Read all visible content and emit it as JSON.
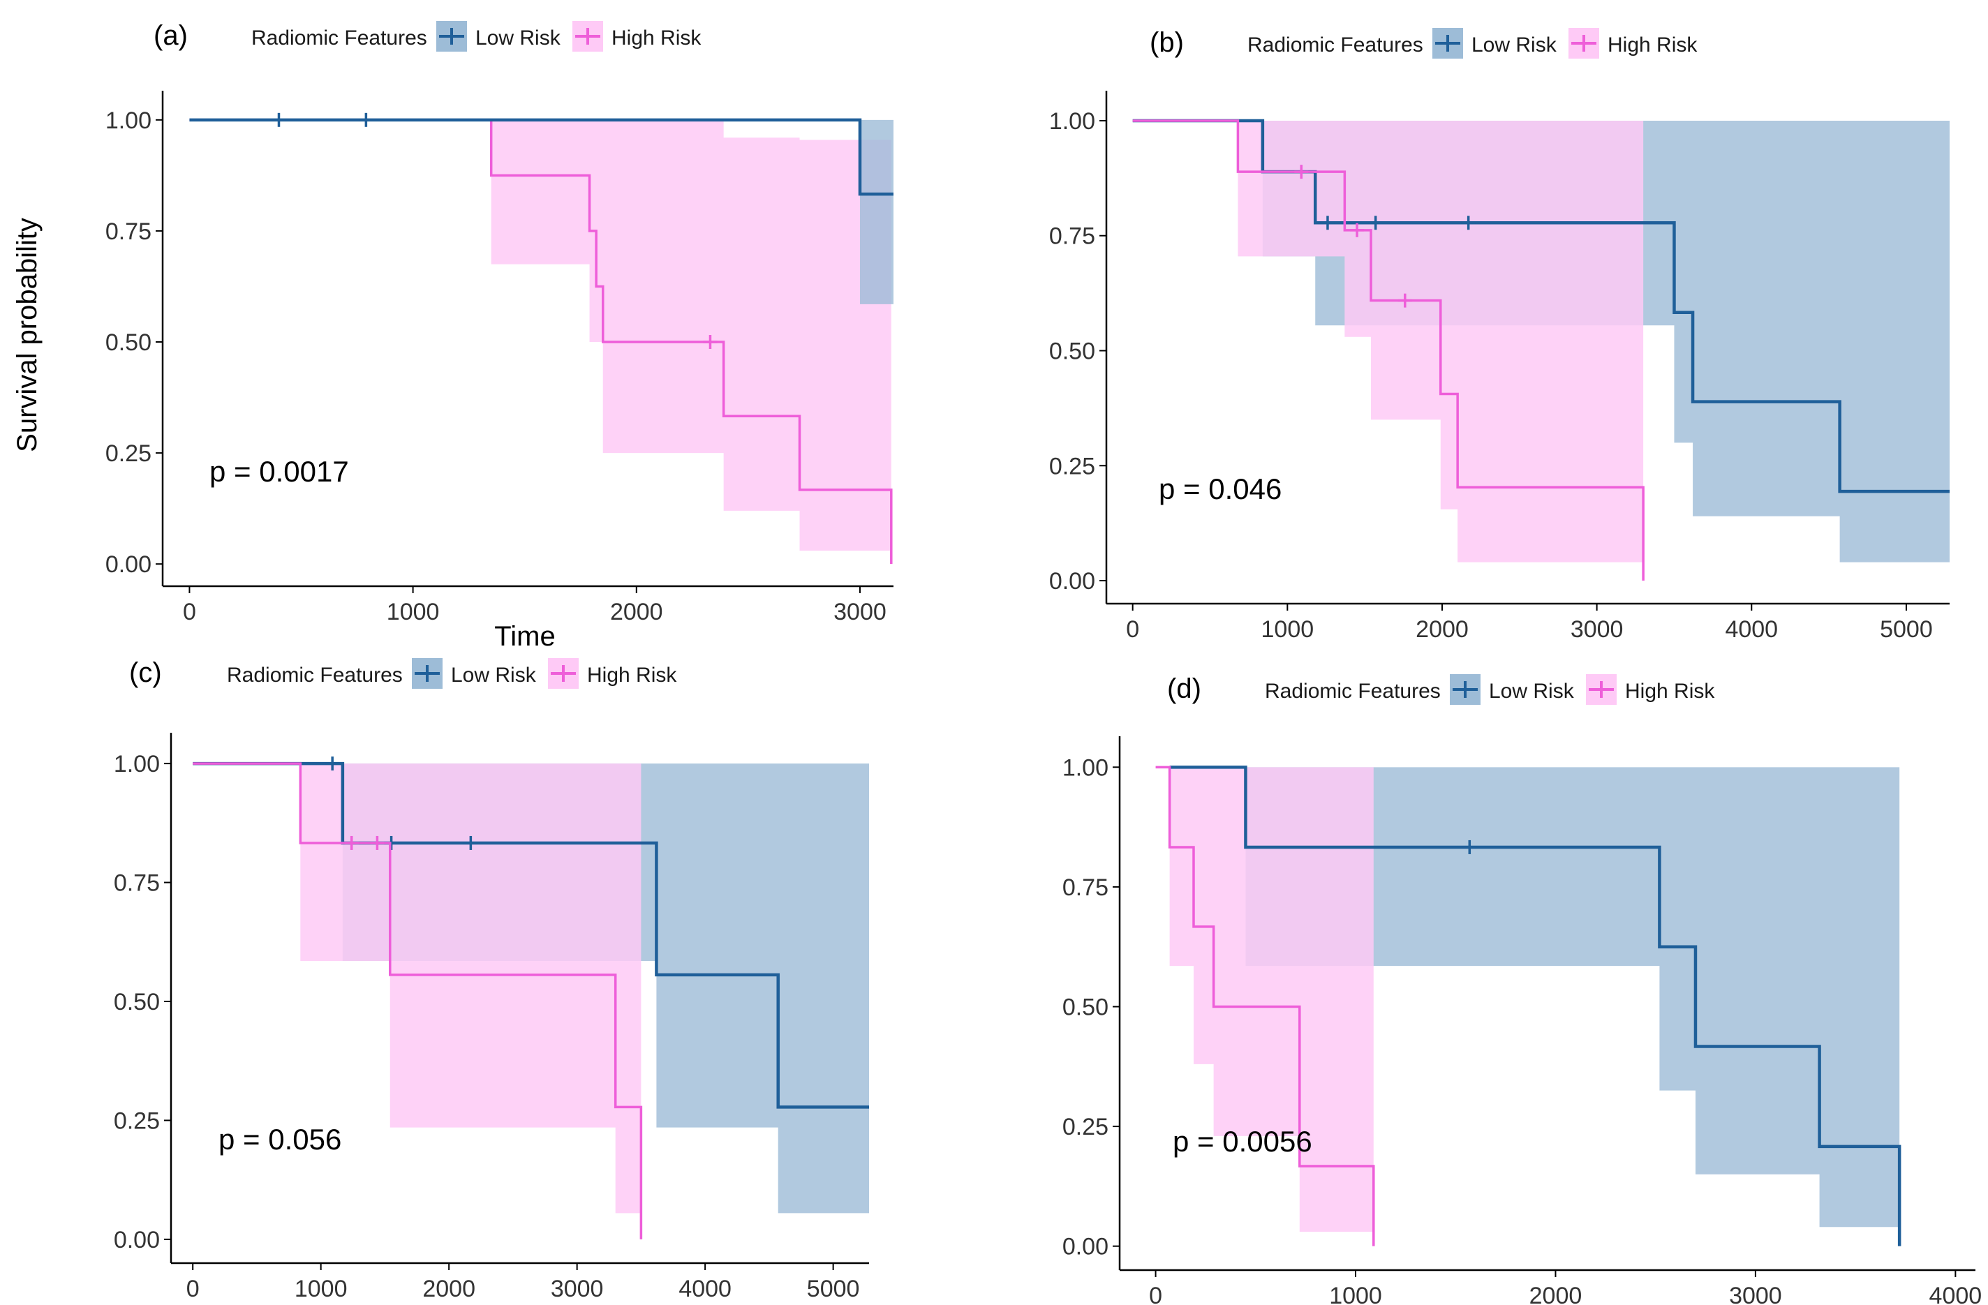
{
  "figure": {
    "y_axis_title": "Survival probability",
    "x_axis_title": "Time",
    "legend": {
      "title": "Radiomic Features",
      "low_label": "Low Risk",
      "high_label": "High Risk"
    },
    "colors": {
      "low_line": "#1f5f99",
      "low_fill": "#9dbcd7",
      "high_line": "#ee5ed9",
      "high_fill": "#fecaf6",
      "overlap_fill": "#cfb0df"
    }
  },
  "chart_data": [
    {
      "type": "line",
      "panel": "(a)",
      "title": "",
      "p_value": "p = 0.0017",
      "xlabel": "Time",
      "ylabel": "Survival probability",
      "xlim": [
        -120,
        3150
      ],
      "ylim": [
        -0.05,
        1.05
      ],
      "x_ticks": [
        0,
        1000,
        2000,
        3000
      ],
      "y_ticks": [
        0.0,
        0.25,
        0.5,
        0.75,
        1.0
      ],
      "series": [
        {
          "name": "High Risk",
          "step": [
            [
              0,
              1.0
            ],
            [
              1350,
              1.0
            ],
            [
              1350,
              0.875
            ],
            [
              1790,
              0.875
            ],
            [
              1790,
              0.75
            ],
            [
              1820,
              0.75
            ],
            [
              1820,
              0.625
            ],
            [
              1850,
              0.625
            ],
            [
              1850,
              0.5
            ],
            [
              2390,
              0.5
            ],
            [
              2390,
              0.333
            ],
            [
              2730,
              0.333
            ],
            [
              2730,
              0.167
            ],
            [
              3140,
              0.167
            ],
            [
              3140,
              0.0
            ]
          ],
          "censored": [
            [
              2330,
              0.5
            ]
          ],
          "ci_band": [
            [
              1350,
              0.675,
              1.0
            ],
            [
              1790,
              0.5,
              1.0
            ],
            [
              1850,
              0.25,
              1.0
            ],
            [
              2390,
              0.12,
              0.96
            ],
            [
              2730,
              0.03,
              0.955
            ],
            [
              3140,
              0.0,
              0.955
            ]
          ]
        },
        {
          "name": "Low Risk",
          "step": [
            [
              0,
              1.0
            ],
            [
              3000,
              1.0
            ],
            [
              3000,
              0.833
            ],
            [
              3150,
              0.833
            ]
          ],
          "censored": [
            [
              400,
              1.0
            ],
            [
              790,
              1.0
            ]
          ],
          "ci_band": [
            [
              3000,
              0.585,
              1.0
            ],
            [
              3150,
              0.585,
              1.0
            ]
          ]
        }
      ]
    },
    {
      "type": "line",
      "panel": "(b)",
      "title": "",
      "p_value": "p = 0.046",
      "xlabel": "",
      "ylabel": "",
      "xlim": [
        -170,
        5280
      ],
      "ylim": [
        -0.05,
        1.05
      ],
      "x_ticks": [
        0,
        1000,
        2000,
        3000,
        4000,
        5000
      ],
      "y_ticks": [
        0.0,
        0.25,
        0.5,
        0.75,
        1.0
      ],
      "series": [
        {
          "name": "Low Risk",
          "step": [
            [
              0,
              1.0
            ],
            [
              840,
              1.0
            ],
            [
              840,
              0.889
            ],
            [
              1180,
              0.889
            ],
            [
              1180,
              0.778
            ],
            [
              3500,
              0.778
            ],
            [
              3500,
              0.583
            ],
            [
              3620,
              0.583
            ],
            [
              3620,
              0.389
            ],
            [
              4570,
              0.389
            ],
            [
              4570,
              0.194
            ],
            [
              5280,
              0.194
            ]
          ],
          "censored": [
            [
              1260,
              0.778
            ],
            [
              1570,
              0.778
            ],
            [
              2170,
              0.778
            ]
          ],
          "ci_band": [
            [
              840,
              0.705,
              1.0
            ],
            [
              1180,
              0.555,
              1.0
            ],
            [
              3500,
              0.3,
              1.0
            ],
            [
              3620,
              0.14,
              1.0
            ],
            [
              4570,
              0.04,
              1.0
            ],
            [
              5280,
              0.04,
              1.0
            ]
          ]
        },
        {
          "name": "High Risk",
          "step": [
            [
              0,
              1.0
            ],
            [
              680,
              1.0
            ],
            [
              680,
              0.889
            ],
            [
              1370,
              0.889
            ],
            [
              1370,
              0.762
            ],
            [
              1540,
              0.762
            ],
            [
              1540,
              0.609
            ],
            [
              1990,
              0.609
            ],
            [
              1990,
              0.406
            ],
            [
              2100,
              0.406
            ],
            [
              2100,
              0.203
            ],
            [
              3300,
              0.203
            ],
            [
              3300,
              0.0
            ]
          ],
          "censored": [
            [
              1090,
              0.889
            ],
            [
              1450,
              0.762
            ],
            [
              1760,
              0.609
            ]
          ],
          "ci_band": [
            [
              680,
              0.705,
              1.0
            ],
            [
              1370,
              0.53,
              1.0
            ],
            [
              1540,
              0.35,
              1.0
            ],
            [
              1990,
              0.155,
              1.0
            ],
            [
              2100,
              0.04,
              1.0
            ],
            [
              3300,
              0.0,
              1.0
            ]
          ]
        }
      ]
    },
    {
      "type": "line",
      "panel": "(c)",
      "title": "",
      "p_value": "p = 0.056",
      "xlabel": "",
      "ylabel": "",
      "xlim": [
        -170,
        5280
      ],
      "ylim": [
        -0.05,
        1.05
      ],
      "x_ticks": [
        0,
        1000,
        2000,
        3000,
        4000,
        5000
      ],
      "y_ticks": [
        0.0,
        0.25,
        0.5,
        0.75,
        1.0
      ],
      "series": [
        {
          "name": "Low Risk",
          "step": [
            [
              0,
              1.0
            ],
            [
              1170,
              1.0
            ],
            [
              1170,
              0.833
            ],
            [
              3620,
              0.833
            ],
            [
              3620,
              0.556
            ],
            [
              4570,
              0.556
            ],
            [
              4570,
              0.278
            ],
            [
              5280,
              0.278
            ]
          ],
          "censored": [
            [
              1090,
              1.0
            ],
            [
              1550,
              0.833
            ],
            [
              2170,
              0.833
            ]
          ],
          "ci_band": [
            [
              1170,
              0.585,
              1.0
            ],
            [
              3620,
              0.235,
              1.0
            ],
            [
              4570,
              0.055,
              1.0
            ],
            [
              5280,
              0.055,
              1.0
            ]
          ]
        },
        {
          "name": "High Risk",
          "step": [
            [
              0,
              1.0
            ],
            [
              840,
              1.0
            ],
            [
              840,
              0.833
            ],
            [
              1540,
              0.833
            ],
            [
              1540,
              0.556
            ],
            [
              3300,
              0.556
            ],
            [
              3300,
              0.278
            ],
            [
              3500,
              0.278
            ],
            [
              3500,
              0.0
            ]
          ],
          "censored": [
            [
              1240,
              0.833
            ],
            [
              1440,
              0.833
            ]
          ],
          "ci_band": [
            [
              840,
              0.585,
              1.0
            ],
            [
              1540,
              0.235,
              1.0
            ],
            [
              3300,
              0.055,
              1.0
            ],
            [
              3500,
              0.0,
              1.0
            ]
          ]
        }
      ]
    },
    {
      "type": "line",
      "panel": "(d)",
      "title": "",
      "p_value": "p = 0.0056",
      "xlabel": "",
      "ylabel": "",
      "xlim": [
        -180,
        4100
      ],
      "ylim": [
        -0.05,
        1.05
      ],
      "x_ticks": [
        0,
        1000,
        2000,
        3000,
        4000
      ],
      "y_ticks": [
        0.0,
        0.25,
        0.5,
        0.75,
        1.0
      ],
      "series": [
        {
          "name": "Low Risk",
          "step": [
            [
              70,
              1.0
            ],
            [
              450,
              1.0
            ],
            [
              450,
              0.833
            ],
            [
              2520,
              0.833
            ],
            [
              2520,
              0.625
            ],
            [
              2700,
              0.625
            ],
            [
              2700,
              0.417
            ],
            [
              3320,
              0.417
            ],
            [
              3320,
              0.208
            ],
            [
              3720,
              0.208
            ],
            [
              3720,
              0.0
            ]
          ],
          "censored": [
            [
              1570,
              0.833
            ]
          ],
          "ci_band": [
            [
              450,
              0.585,
              1.0
            ],
            [
              2520,
              0.325,
              1.0
            ],
            [
              2700,
              0.15,
              1.0
            ],
            [
              3320,
              0.04,
              1.0
            ],
            [
              3720,
              0.0,
              1.0
            ]
          ]
        },
        {
          "name": "High Risk",
          "step": [
            [
              0,
              1.0
            ],
            [
              70,
              1.0
            ],
            [
              70,
              0.833
            ],
            [
              190,
              0.833
            ],
            [
              190,
              0.667
            ],
            [
              290,
              0.667
            ],
            [
              290,
              0.5
            ],
            [
              720,
              0.5
            ],
            [
              720,
              0.167
            ],
            [
              1090,
              0.167
            ],
            [
              1090,
              0.0
            ]
          ],
          "censored": [],
          "ci_band": [
            [
              70,
              0.585,
              1.0
            ],
            [
              190,
              0.38,
              1.0
            ],
            [
              290,
              0.23,
              1.0
            ],
            [
              720,
              0.03,
              1.0
            ],
            [
              1090,
              0.0,
              1.0
            ]
          ]
        }
      ]
    }
  ]
}
